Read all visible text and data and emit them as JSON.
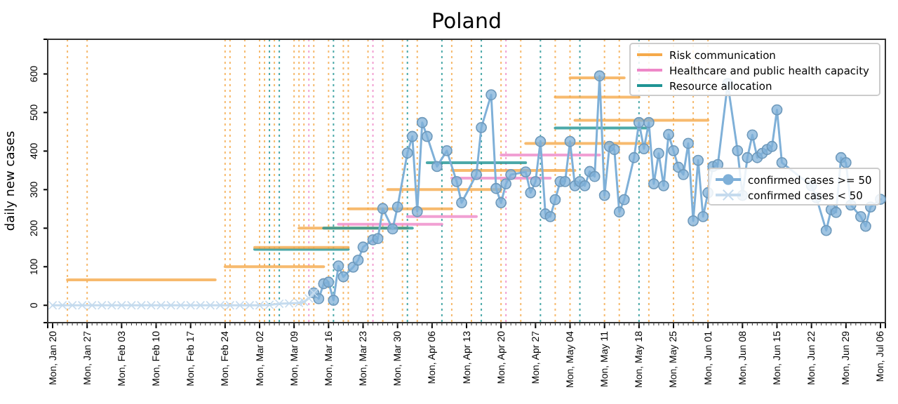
{
  "chart_data": {
    "type": "line",
    "title": "Poland",
    "ylabel": "daily new cases",
    "xlim": [
      "--01-19",
      "--07-07"
    ],
    "ylim": [
      -45,
      690
    ],
    "xticks": [
      {
        "value": "--01-20",
        "label": "Mon, Jan 20"
      },
      {
        "value": "--01-27",
        "label": "Mon, Jan 27"
      },
      {
        "value": "--02-03",
        "label": "Mon, Feb 03"
      },
      {
        "value": "--02-10",
        "label": "Mon, Feb 10"
      },
      {
        "value": "--02-17",
        "label": "Mon, Feb 17"
      },
      {
        "value": "--02-24",
        "label": "Mon, Feb 24"
      },
      {
        "value": "--03-02",
        "label": "Mon, Mar 02"
      },
      {
        "value": "--03-09",
        "label": "Mon, Mar 09"
      },
      {
        "value": "--03-16",
        "label": "Mon, Mar 16"
      },
      {
        "value": "--03-23",
        "label": "Mon, Mar 23"
      },
      {
        "value": "--03-30",
        "label": "Mon, Mar 30"
      },
      {
        "value": "--04-06",
        "label": "Mon, Apr 06"
      },
      {
        "value": "--04-13",
        "label": "Mon, Apr 13"
      },
      {
        "value": "--04-20",
        "label": "Mon, Apr 20"
      },
      {
        "value": "--04-27",
        "label": "Mon, Apr 27"
      },
      {
        "value": "--05-04",
        "label": "Mon, May 04"
      },
      {
        "value": "--05-11",
        "label": "Mon, May 11"
      },
      {
        "value": "--05-18",
        "label": "Mon, May 18"
      },
      {
        "value": "--05-25",
        "label": "Mon, May 25"
      },
      {
        "value": "--06-01",
        "label": "Mon, Jun 01"
      },
      {
        "value": "--06-08",
        "label": "Mon, Jun 08"
      },
      {
        "value": "--06-15",
        "label": "Mon, Jun 15"
      },
      {
        "value": "--06-22",
        "label": "Mon, Jun 22"
      },
      {
        "value": "--06-29",
        "label": "Mon, Jun 29"
      },
      {
        "value": "--07-06",
        "label": "Mon, Jul 06"
      }
    ],
    "yticks": [
      0,
      100,
      200,
      300,
      400,
      500,
      600
    ],
    "grid": false,
    "legend": "top right",
    "line_style": "solid",
    "series": [
      {
        "name": "Risk communication",
        "color": "#f5a94a",
        "marker": "none",
        "x": [
          "--01-23",
          "--02-22"
        ],
        "values": [
          66,
          66
        ]
      },
      {
        "name": "Healthcare and public health capacity",
        "color": "#ee88c8",
        "marker": "none",
        "x": [
          "--03-18",
          "--04-08"
        ],
        "values": [
          210,
          210
        ]
      },
      {
        "name": "Resource allocation",
        "color": "#1f9494",
        "marker": "none",
        "x": [
          "--03-01",
          "--03-20"
        ],
        "values": [
          145,
          145
        ]
      },
      {
        "color": "#f5a94a",
        "marker": "none",
        "x": [
          "--02-24",
          "--03-15"
        ],
        "values": [
          100,
          100
        ]
      },
      {
        "color": "#f5a94a",
        "marker": "none",
        "x": [
          "--03-01",
          "--03-20"
        ],
        "values": [
          150,
          150
        ]
      },
      {
        "color": "#f5a94a",
        "marker": "none",
        "x": [
          "--03-10",
          "--04-01"
        ],
        "values": [
          200,
          200
        ]
      },
      {
        "color": "#f5a94a",
        "marker": "none",
        "x": [
          "--03-20",
          "--04-10"
        ],
        "values": [
          250,
          250
        ]
      },
      {
        "color": "#f5a94a",
        "marker": "none",
        "x": [
          "--03-28",
          "--04-20"
        ],
        "values": [
          300,
          300
        ]
      },
      {
        "color": "#f5a94a",
        "marker": "none",
        "x": [
          "--04-10",
          "--05-05"
        ],
        "values": [
          350,
          350
        ]
      },
      {
        "color": "#f5a94a",
        "marker": "none",
        "x": [
          "--04-25",
          "--05-20"
        ],
        "values": [
          420,
          420
        ]
      },
      {
        "color": "#f5a94a",
        "marker": "none",
        "x": [
          "--05-05",
          "--06-01"
        ],
        "values": [
          480,
          480
        ]
      },
      {
        "color": "#f5a94a",
        "marker": "none",
        "x": [
          "--05-01",
          "--05-18"
        ],
        "values": [
          540,
          540
        ]
      },
      {
        "color": "#f5a94a",
        "marker": "none",
        "x": [
          "--05-04",
          "--05-15"
        ],
        "values": [
          590,
          590
        ]
      },
      {
        "color": "#ee88c8",
        "marker": "none",
        "x": [
          "--04-01",
          "--04-15"
        ],
        "values": [
          230,
          230
        ]
      },
      {
        "color": "#ee88c8",
        "marker": "none",
        "x": [
          "--04-10",
          "--04-30"
        ],
        "values": [
          330,
          330
        ]
      },
      {
        "color": "#ee88c8",
        "marker": "none",
        "x": [
          "--04-20",
          "--05-10"
        ],
        "values": [
          390,
          390
        ]
      },
      {
        "color": "#1f9494",
        "marker": "none",
        "x": [
          "--03-15",
          "--04-02"
        ],
        "values": [
          200,
          200
        ]
      },
      {
        "color": "#1f9494",
        "marker": "none",
        "x": [
          "--04-05",
          "--04-25"
        ],
        "values": [
          370,
          370
        ]
      },
      {
        "color": "#1f9494",
        "marker": "none",
        "x": [
          "--05-01",
          "--05-20"
        ],
        "values": [
          460,
          460
        ]
      },
      {
        "name": "confirmed cases >= 50",
        "color": "#7fb0d8",
        "marker": "circle",
        "x": [
          "--03-13",
          "--03-14",
          "--03-15",
          "--03-16",
          "--03-17",
          "--03-18",
          "--03-19",
          "--03-21",
          "--03-22",
          "--03-23",
          "--03-25",
          "--03-26",
          "--03-27",
          "--03-29",
          "--03-30",
          "--04-01",
          "--04-02",
          "--04-03",
          "--04-04",
          "--04-05",
          "--04-07",
          "--04-09",
          "--04-11",
          "--04-12",
          "--04-15",
          "--04-16",
          "--04-18",
          "--04-19",
          "--04-20",
          "--04-21",
          "--04-22",
          "--04-25",
          "--04-26",
          "--04-27",
          "--04-28",
          "--04-29",
          "--04-30",
          "--05-01",
          "--05-02",
          "--05-03",
          "--05-04",
          "--05-05",
          "--05-06",
          "--05-07",
          "--05-08",
          "--05-09",
          "--05-10",
          "--05-11",
          "--05-12",
          "--05-13",
          "--05-14",
          "--05-15",
          "--05-17",
          "--05-18",
          "--05-19",
          "--05-20",
          "--05-21",
          "--05-22",
          "--05-23",
          "--05-24",
          "--05-25",
          "--05-26",
          "--05-27",
          "--05-28",
          "--05-29",
          "--05-30",
          "--05-31",
          "--06-01",
          "--06-02",
          "--06-03",
          "--06-05",
          "--06-07",
          "--06-08",
          "--06-09",
          "--06-10",
          "--06-11",
          "--06-12",
          "--06-13",
          "--06-14",
          "--06-15",
          "--06-16",
          "--06-22",
          "--06-23",
          "--06-25",
          "--06-26",
          "--06-27",
          "--06-28",
          "--06-29",
          "--06-30",
          "--07-02",
          "--07-03",
          "--07-04",
          "--07-06"
        ],
        "values": [
          32,
          17,
          56,
          60,
          13,
          102,
          74,
          99,
          117,
          151,
          170,
          173,
          251,
          198,
          255,
          395,
          438,
          243,
          474,
          438,
          360,
          401,
          321,
          266,
          339,
          461,
          546,
          303,
          266,
          315,
          339,
          346,
          292,
          321,
          425,
          237,
          230,
          274,
          321,
          321,
          425,
          310,
          321,
          310,
          347,
          334,
          595,
          285,
          412,
          404,
          242,
          274,
          383,
          474,
          406,
          474,
          315,
          394,
          310,
          443,
          401,
          358,
          339,
          420,
          219,
          376,
          230,
          292,
          360,
          365,
          575,
          401,
          285,
          383,
          442,
          383,
          394,
          404,
          412,
          507,
          370,
          310,
          279,
          194,
          248,
          241,
          383,
          370,
          260,
          230,
          205,
          255,
          275
        ]
      },
      {
        "name": "confirmed cases < 50",
        "color": "#c5dbee",
        "marker": "cross",
        "x": [
          "--01-20",
          "--01-22",
          "--01-24",
          "--01-26",
          "--01-28",
          "--01-30",
          "--02-01",
          "--02-03",
          "--02-05",
          "--02-07",
          "--02-09",
          "--02-11",
          "--02-13",
          "--02-15",
          "--02-17",
          "--02-19",
          "--02-21",
          "--02-23",
          "--02-25",
          "--02-27",
          "--02-29",
          "--03-02",
          "--03-04",
          "--03-06",
          "--03-08",
          "--03-10",
          "--03-11",
          "--03-12",
          "--03-13"
        ],
        "values": [
          0,
          0,
          0,
          0,
          0,
          0,
          0,
          0,
          0,
          0,
          0,
          0,
          0,
          0,
          0,
          0,
          0,
          0,
          0,
          0,
          0,
          0,
          1,
          4,
          5,
          6,
          9,
          18,
          32
        ]
      }
    ],
    "ref_lines": [
      {
        "axis": "x",
        "value": "--01-23",
        "color": "#f5a94a",
        "line_style": "dotted"
      },
      {
        "axis": "x",
        "value": "--01-27",
        "color": "#f5a94a",
        "line_style": "dotted"
      },
      {
        "axis": "x",
        "value": "--02-24",
        "color": "#f5a94a",
        "line_style": "dotted"
      },
      {
        "axis": "x",
        "value": "--02-25",
        "color": "#f5a94a",
        "line_style": "dotted"
      },
      {
        "axis": "x",
        "value": "--02-28",
        "color": "#f5a94a",
        "line_style": "dotted"
      },
      {
        "axis": "x",
        "value": "--03-02",
        "color": "#f5a94a",
        "line_style": "dotted"
      },
      {
        "axis": "x",
        "value": "--03-03",
        "color": "#f5a94a",
        "line_style": "dotted"
      },
      {
        "axis": "x",
        "value": "--03-04",
        "color": "#1f9494",
        "line_style": "dotted"
      },
      {
        "axis": "x",
        "value": "--03-05",
        "color": "#f5a94a",
        "line_style": "dotted"
      },
      {
        "axis": "x",
        "value": "--03-06",
        "color": "#1f9494",
        "line_style": "dotted"
      },
      {
        "axis": "x",
        "value": "--03-09",
        "color": "#f5a94a",
        "line_style": "dotted"
      },
      {
        "axis": "x",
        "value": "--03-10",
        "color": "#f5a94a",
        "line_style": "dotted"
      },
      {
        "axis": "x",
        "value": "--03-11",
        "color": "#f5a94a",
        "line_style": "dotted"
      },
      {
        "axis": "x",
        "value": "--03-12",
        "color": "#ee88c8",
        "line_style": "dotted"
      },
      {
        "axis": "x",
        "value": "--03-13",
        "color": "#f5a94a",
        "line_style": "dotted"
      },
      {
        "axis": "x",
        "value": "--03-16",
        "color": "#f5a94a",
        "line_style": "dotted"
      },
      {
        "axis": "x",
        "value": "--03-17",
        "color": "#1f9494",
        "line_style": "dotted"
      },
      {
        "axis": "x",
        "value": "--03-19",
        "color": "#f5a94a",
        "line_style": "dotted"
      },
      {
        "axis": "x",
        "value": "--03-20",
        "color": "#f5a94a",
        "line_style": "dotted"
      },
      {
        "axis": "x",
        "value": "--03-24",
        "color": "#f5a94a",
        "line_style": "dotted"
      },
      {
        "axis": "x",
        "value": "--03-25",
        "color": "#ee88c8",
        "line_style": "dotted"
      },
      {
        "axis": "x",
        "value": "--03-27",
        "color": "#f5a94a",
        "line_style": "dotted"
      },
      {
        "axis": "x",
        "value": "--03-31",
        "color": "#f5a94a",
        "line_style": "dotted"
      },
      {
        "axis": "x",
        "value": "--04-01",
        "color": "#1f9494",
        "line_style": "dotted"
      },
      {
        "axis": "x",
        "value": "--04-03",
        "color": "#f5a94a",
        "line_style": "dotted"
      },
      {
        "axis": "x",
        "value": "--04-08",
        "color": "#1f9494",
        "line_style": "dotted"
      },
      {
        "axis": "x",
        "value": "--04-10",
        "color": "#f5a94a",
        "line_style": "dotted"
      },
      {
        "axis": "x",
        "value": "--04-14",
        "color": "#f5a94a",
        "line_style": "dotted"
      },
      {
        "axis": "x",
        "value": "--04-16",
        "color": "#1f9494",
        "line_style": "dotted"
      },
      {
        "axis": "x",
        "value": "--04-20",
        "color": "#f5a94a",
        "line_style": "dotted"
      },
      {
        "axis": "x",
        "value": "--04-21",
        "color": "#ee88c8",
        "line_style": "dotted"
      },
      {
        "axis": "x",
        "value": "--04-24",
        "color": "#f5a94a",
        "line_style": "dotted"
      },
      {
        "axis": "x",
        "value": "--04-28",
        "color": "#1f9494",
        "line_style": "dotted"
      },
      {
        "axis": "x",
        "value": "--05-01",
        "color": "#f5a94a",
        "line_style": "dotted"
      },
      {
        "axis": "x",
        "value": "--05-04",
        "color": "#f5a94a",
        "line_style": "dotted"
      },
      {
        "axis": "x",
        "value": "--05-06",
        "color": "#1f9494",
        "line_style": "dotted"
      },
      {
        "axis": "x",
        "value": "--05-11",
        "color": "#f5a94a",
        "line_style": "dotted"
      },
      {
        "axis": "x",
        "value": "--05-14",
        "color": "#f5a94a",
        "line_style": "dotted"
      },
      {
        "axis": "x",
        "value": "--05-18",
        "color": "#1f9494",
        "line_style": "dotted"
      },
      {
        "axis": "x",
        "value": "--05-20",
        "color": "#f5a94a",
        "line_style": "dotted"
      },
      {
        "axis": "x",
        "value": "--05-25",
        "color": "#f5a94a",
        "line_style": "dotted"
      },
      {
        "axis": "x",
        "value": "--05-29",
        "color": "#f5a94a",
        "line_style": "dotted"
      },
      {
        "axis": "x",
        "value": "--06-01",
        "color": "#f5a94a",
        "line_style": "dotted"
      }
    ]
  }
}
